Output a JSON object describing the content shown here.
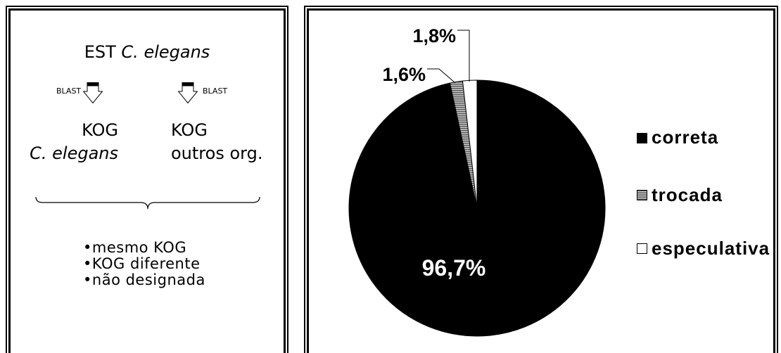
{
  "diagram": {
    "query": {
      "prefix": "EST",
      "organism": "C. elegans"
    },
    "blast_left": "BLAST",
    "blast_right": "BLAST",
    "targets": [
      {
        "line1": "KOG",
        "line2": "C. elegans"
      },
      {
        "line1": "KOG",
        "line2": "outros org."
      }
    ],
    "outcomes": [
      "•mesmo KOG",
      "•KOG diferente",
      "•não designada"
    ]
  },
  "icons": {
    "blast_arrow": "down-arrow-icon",
    "brace": "curly-brace-icon"
  },
  "chart_data": {
    "type": "pie",
    "title": "",
    "categories": [
      "correta",
      "trocada",
      "especulativa"
    ],
    "values": [
      96.7,
      1.6,
      1.8
    ],
    "data_labels": [
      "96,7%",
      "1,6%",
      "1,8%"
    ],
    "colors": [
      "#000000",
      "#808080",
      "#ffffff"
    ],
    "hatched": [
      false,
      true,
      false
    ],
    "legend_position": "right"
  }
}
